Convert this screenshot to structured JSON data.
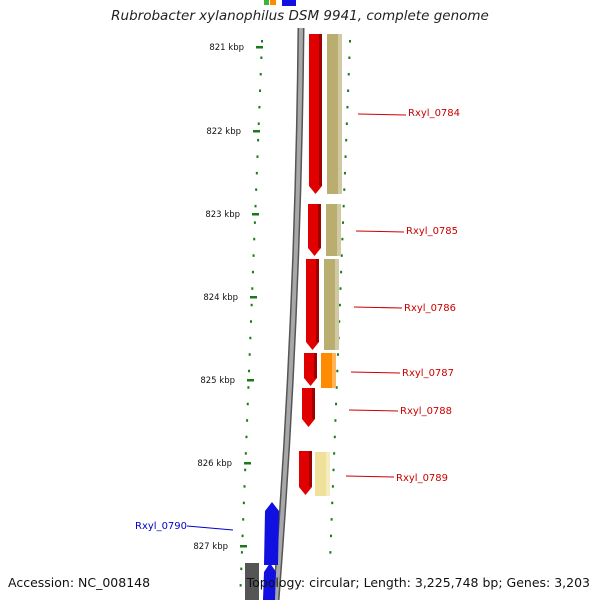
{
  "title": "Rubrobacter xylanophilus DSM 9941, complete genome",
  "accession": "Accession: NC_008148",
  "topology": "Topology: circular; Length: 3,225,748 bp; Genes: 3,203",
  "colors": {
    "backbone": "#7f7f7f",
    "tick": "#1a7a1a",
    "forward_gene": "#e00000",
    "reverse_gene": "#1010e0",
    "cog_tan": "#b9ad70",
    "cog_orange": "#ff8c00",
    "cog_light_yellow": "#f0e19a",
    "forward_label": "#cc0000",
    "reverse_label": "#0000cc"
  },
  "ticks": [
    "821 kbp",
    "822 kbp",
    "823 kbp",
    "824 kbp",
    "825 kbp",
    "826 kbp",
    "827 kbp"
  ],
  "genes": [
    {
      "name": "Rxyl_0784",
      "strand": "+",
      "cog_color": "tan"
    },
    {
      "name": "Rxyl_0785",
      "strand": "+",
      "cog_color": "tan"
    },
    {
      "name": "Rxyl_0786",
      "strand": "+",
      "cog_color": "tan"
    },
    {
      "name": "Rxyl_0787",
      "strand": "+",
      "cog_color": "orange"
    },
    {
      "name": "Rxyl_0788",
      "strand": "+",
      "cog_color": "none"
    },
    {
      "name": "Rxyl_0789",
      "strand": "+",
      "cog_color": "light_yellow"
    },
    {
      "name": "Rxyl_0790",
      "strand": "-",
      "cog_color": "gray"
    }
  ]
}
